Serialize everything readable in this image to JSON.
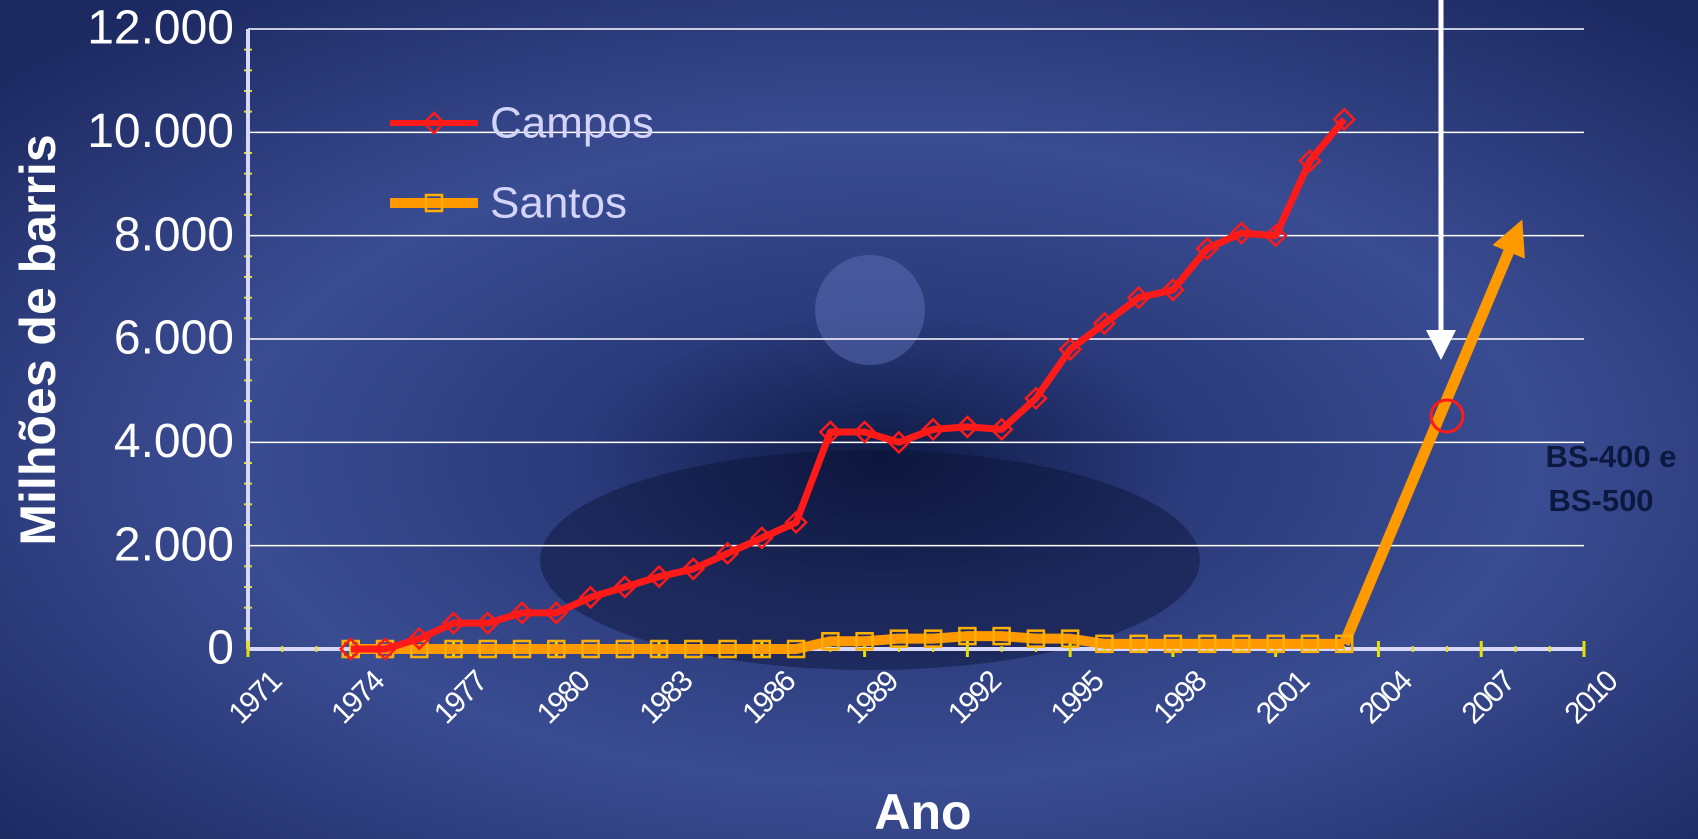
{
  "chart_data": {
    "type": "line",
    "x": [
      1974,
      1975,
      1976,
      1977,
      1978,
      1979,
      1980,
      1981,
      1982,
      1983,
      1984,
      1985,
      1986,
      1987,
      1988,
      1989,
      1990,
      1991,
      1992,
      1993,
      1994,
      1995,
      1996,
      1997,
      1998,
      1999,
      2000,
      2001,
      2002,
      2003
    ],
    "series": [
      {
        "name": "Campos",
        "color": "#ff1a1a",
        "marker": "diamond",
        "values": [
          0,
          0,
          200,
          500,
          500,
          700,
          700,
          1000,
          1200,
          1400,
          1550,
          1850,
          2150,
          2450,
          4200,
          4200,
          4000,
          4250,
          4300,
          4250,
          4850,
          5800,
          6300,
          6800,
          6950,
          7750,
          8050,
          8000,
          9450,
          10250
        ]
      },
      {
        "name": "Santos",
        "color": "#ff9900",
        "marker": "square",
        "values": [
          0,
          0,
          0,
          0,
          0,
          0,
          0,
          0,
          0,
          0,
          0,
          0,
          0,
          0,
          150,
          150,
          200,
          200,
          250,
          250,
          200,
          200,
          100,
          100,
          100,
          100,
          100,
          100,
          100,
          100
        ]
      }
    ],
    "projection": {
      "color": "#ff9900",
      "x": [
        2003,
        2008
      ],
      "values": [
        100,
        8000
      ]
    },
    "xlim": [
      1971,
      2010
    ],
    "xticks": [
      1971,
      1974,
      1977,
      1980,
      1983,
      1986,
      1989,
      1992,
      1995,
      1998,
      2001,
      2004,
      2007,
      2010
    ],
    "ylim": [
      0,
      12000
    ],
    "yticks": [
      0,
      {
        "value": 2000,
        "label": "2.000"
      },
      {
        "value": 4000,
        "label": "4.000"
      },
      {
        "value": 6000,
        "label": "6.000"
      },
      {
        "value": 8000,
        "label": "8.000"
      },
      {
        "value": 10000,
        "label": "10.000"
      },
      {
        "value": 12000,
        "label": "12.000"
      }
    ],
    "grid": true,
    "xlabel": "Ano",
    "ylabel": "Milhões de barris",
    "annotation": [
      "BS-400 e",
      "BS-500"
    ]
  }
}
